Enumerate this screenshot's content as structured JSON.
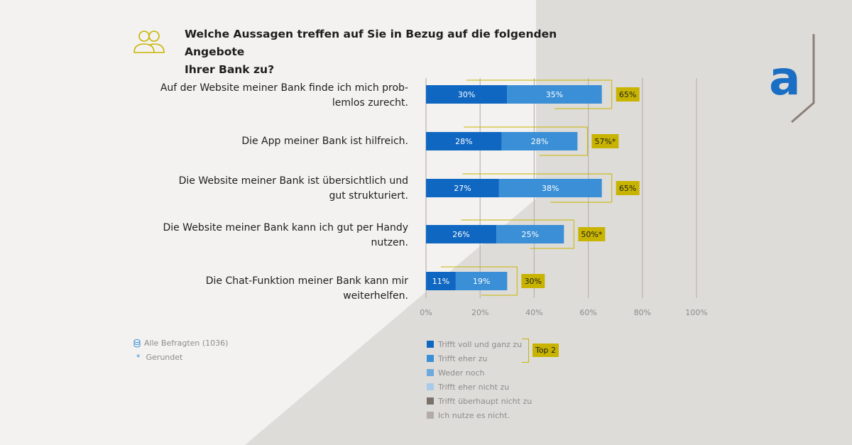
{
  "colors": {
    "dark_blue": "#0f67c2",
    "mid_blue": "#3a8fd6",
    "light_blue": "#6fa9dd",
    "pale_blue": "#a9cbeb",
    "dark_grey": "#7a716a",
    "light_grey": "#b3aca6",
    "gold": "#c8b400"
  },
  "chart_data": {
    "type": "bar",
    "orientation": "horizontal",
    "stacked": true,
    "title_lines": [
      "Welche Aussagen treffen auf Sie in Bezug auf die folgenden Angebote",
      "Ihrer Bank zu?"
    ],
    "categories": [
      [
        "Auf der Website meiner Bank finde ich mich prob-",
        "lemlos zurecht."
      ],
      [
        "Die App meiner Bank ist hilfreich."
      ],
      [
        "Die Website meiner Bank ist übersichtlich und",
        "gut strukturiert."
      ],
      [
        "Die Website meiner Bank kann ich gut per Handy",
        "nutzen."
      ],
      [
        "Die Chat-Funktion meiner Bank kann mir weiterhelfen."
      ]
    ],
    "series": [
      {
        "name": "Trifft voll und ganz zu",
        "values": [
          30,
          28,
          27,
          26,
          11
        ],
        "labels": [
          "30%",
          "28%",
          "27%",
          "26%",
          "11%"
        ]
      },
      {
        "name": "Trifft eher zu",
        "values": [
          35,
          28,
          38,
          25,
          19
        ],
        "labels": [
          "35%",
          "28%",
          "38%",
          "25%",
          "19%"
        ]
      }
    ],
    "top2_totals": [
      "65%",
      "57%*",
      "65%",
      "50%*",
      "30%"
    ],
    "x_ticks": [
      "0%",
      "20%",
      "40%",
      "60%",
      "80%",
      "100%"
    ],
    "xlim": [
      0,
      100
    ],
    "legend": [
      "Trifft voll und ganz zu",
      "Trifft eher zu",
      "Weder noch",
      "Trifft eher nicht zu",
      "Trifft überhaupt nicht zu",
      "Ich nutze es nicht."
    ],
    "top2_label": "Top 2",
    "notes": {
      "respondents": "Alle Befragten (1036)",
      "rounded": "Gerundet"
    }
  }
}
